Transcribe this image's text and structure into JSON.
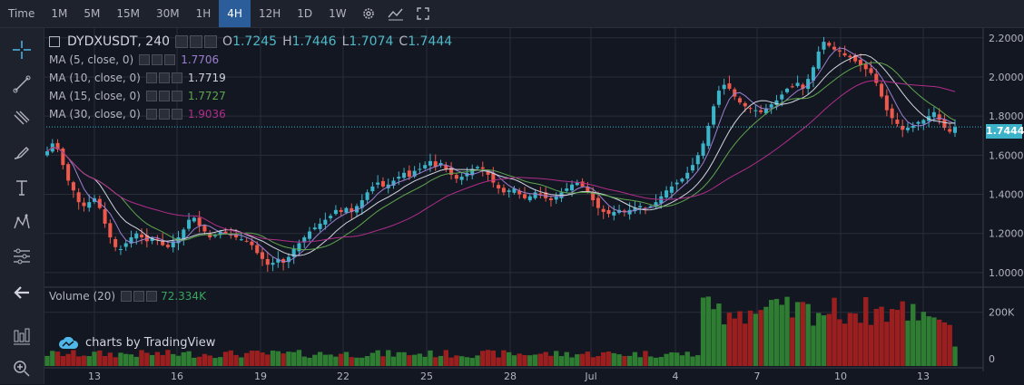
{
  "toolbar": {
    "time_label": "Time",
    "timeframes": [
      "1M",
      "5M",
      "15M",
      "30M",
      "1H",
      "4H",
      "12H",
      "1D",
      "1W"
    ],
    "active_timeframe": "4H"
  },
  "symbol": {
    "name": "DYDXUSDT, 240",
    "open_label": "O",
    "open": "1.7245",
    "high_label": "H",
    "high": "1.7446",
    "low_label": "L",
    "low": "1.7074",
    "close_label": "C",
    "close": "1.7444"
  },
  "indicators": [
    {
      "label": "MA (5, close, 0)",
      "value": "1.7706",
      "color": "#9c7fd1"
    },
    {
      "label": "MA (10, close, 0)",
      "value": "1.7719",
      "color": "#d1d4dc"
    },
    {
      "label": "MA (15, close, 0)",
      "value": "1.7727",
      "color": "#5ea64e"
    },
    {
      "label": "MA (30, close, 0)",
      "value": "1.9036",
      "color": "#b02d8a"
    }
  ],
  "volume_legend": {
    "label": "Volume (20)",
    "value": "72.334K",
    "color": "#3aa55d"
  },
  "last_price_tag": "1.7444",
  "watermark": "charts by TradingView",
  "colors": {
    "up": "#26a69a",
    "down": "#ef5350",
    "up_candle": "#3db3c9",
    "down_candle": "#f0584b",
    "vol_up": "#2e7d32",
    "vol_down": "#9c1f1f",
    "grid": "#2a2e39",
    "background": "#131722",
    "accent": "#2a5d99"
  },
  "chart_data": {
    "type": "candlestick",
    "title": "DYDXUSDT, 240",
    "price_axis": {
      "ticks": [
        "2.2000",
        "2.0000",
        "1.8000",
        "1.6000",
        "1.4000",
        "1.2000",
        "1.0000"
      ],
      "range": [
        0.93,
        2.25
      ]
    },
    "volume_axis": {
      "ticks": [
        "200K",
        "0"
      ],
      "range": [
        0,
        290000
      ]
    },
    "time_axis": {
      "ticks": [
        "13",
        "16",
        "19",
        "22",
        "25",
        "28",
        "Jul",
        "4",
        "7",
        "10",
        "13"
      ]
    },
    "grid": true,
    "last_price": 1.7444,
    "close_series": [
      1.62,
      1.66,
      1.63,
      1.55,
      1.47,
      1.42,
      1.36,
      1.34,
      1.36,
      1.38,
      1.33,
      1.25,
      1.18,
      1.13,
      1.12,
      1.15,
      1.18,
      1.2,
      1.18,
      1.16,
      1.18,
      1.17,
      1.14,
      1.13,
      1.16,
      1.18,
      1.22,
      1.27,
      1.28,
      1.24,
      1.21,
      1.18,
      1.19,
      1.21,
      1.2,
      1.19,
      1.18,
      1.17,
      1.16,
      1.14,
      1.1,
      1.07,
      1.04,
      1.05,
      1.07,
      1.05,
      1.08,
      1.12,
      1.15,
      1.18,
      1.21,
      1.23,
      1.25,
      1.27,
      1.29,
      1.32,
      1.31,
      1.33,
      1.31,
      1.34,
      1.37,
      1.41,
      1.44,
      1.46,
      1.44,
      1.45,
      1.47,
      1.49,
      1.51,
      1.49,
      1.52,
      1.53,
      1.55,
      1.57,
      1.54,
      1.56,
      1.53,
      1.5,
      1.48,
      1.49,
      1.51,
      1.53,
      1.54,
      1.53,
      1.5,
      1.46,
      1.43,
      1.41,
      1.42,
      1.43,
      1.4,
      1.38,
      1.39,
      1.41,
      1.4,
      1.38,
      1.37,
      1.39,
      1.41,
      1.43,
      1.45,
      1.46,
      1.44,
      1.41,
      1.37,
      1.33,
      1.31,
      1.3,
      1.31,
      1.32,
      1.31,
      1.32,
      1.33,
      1.34,
      1.33,
      1.34,
      1.36,
      1.39,
      1.42,
      1.44,
      1.46,
      1.48,
      1.51,
      1.55,
      1.6,
      1.66,
      1.75,
      1.85,
      1.93,
      1.96,
      1.94,
      1.9,
      1.87,
      1.85,
      1.84,
      1.83,
      1.82,
      1.84,
      1.86,
      1.88,
      1.91,
      1.94,
      1.95,
      1.97,
      1.94,
      1.99,
      2.05,
      2.13,
      2.18,
      2.16,
      2.14,
      2.13,
      2.11,
      2.1,
      2.08,
      2.06,
      2.04,
      2.02,
      1.97,
      1.9,
      1.83,
      1.79,
      1.76,
      1.73,
      1.74,
      1.75,
      1.77,
      1.78,
      1.8,
      1.82,
      1.78,
      1.74,
      1.72,
      1.7444
    ],
    "ma": [
      {
        "name": "MA (5, close, 0)",
        "period": 5,
        "last": 1.7706
      },
      {
        "name": "MA (10, close, 0)",
        "period": 10,
        "last": 1.7719
      },
      {
        "name": "MA (15, close, 0)",
        "period": 15,
        "last": 1.7727
      },
      {
        "name": "MA (30, close, 0)",
        "period": 30,
        "last": 1.9036
      }
    ],
    "volume_last": 72334
  }
}
